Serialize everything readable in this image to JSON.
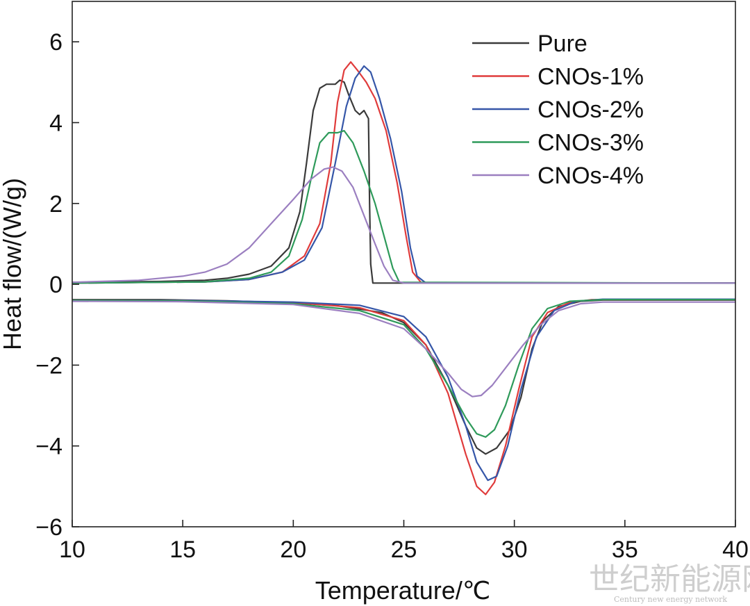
{
  "chart_data": {
    "type": "line",
    "title": "",
    "xlabel": "Temperature/℃",
    "ylabel": "Heat flow/(W/g)",
    "xlim": [
      10,
      40
    ],
    "ylim": [
      -6,
      7
    ],
    "xticks": [
      10,
      15,
      20,
      25,
      30,
      35,
      40
    ],
    "yticks": [
      -6,
      -4,
      -2,
      0,
      2,
      4,
      6
    ],
    "ytick_labels": [
      "−6",
      "−4",
      "−2",
      "0",
      "2",
      "4",
      "6"
    ],
    "grid": false,
    "legend_position": "top-right",
    "series": [
      {
        "name": "Pure",
        "color": "#3a3a3a",
        "segments": [
          [
            [
              10,
              0.05
            ],
            [
              14,
              0.07
            ],
            [
              16,
              0.1
            ],
            [
              17,
              0.15
            ],
            [
              18,
              0.25
            ],
            [
              19,
              0.45
            ],
            [
              19.8,
              0.9
            ],
            [
              20.3,
              1.8
            ],
            [
              20.6,
              3.0
            ],
            [
              20.9,
              4.3
            ],
            [
              21.2,
              4.85
            ],
            [
              21.5,
              4.95
            ],
            [
              21.9,
              4.95
            ],
            [
              22.1,
              5.05
            ],
            [
              22.3,
              5.0
            ],
            [
              22.5,
              4.7
            ],
            [
              22.8,
              4.3
            ],
            [
              23.0,
              4.2
            ],
            [
              23.2,
              4.3
            ],
            [
              23.4,
              4.1
            ],
            [
              23.45,
              2.0
            ],
            [
              23.5,
              0.5
            ],
            [
              23.6,
              0.03
            ],
            [
              40,
              0.03
            ]
          ],
          [
            [
              10,
              -0.38
            ],
            [
              14,
              -0.38
            ],
            [
              17,
              -0.41
            ],
            [
              20,
              -0.46
            ],
            [
              22,
              -0.53
            ],
            [
              24,
              -0.7
            ],
            [
              25,
              -0.95
            ],
            [
              26,
              -1.5
            ],
            [
              27,
              -2.5
            ],
            [
              27.8,
              -3.5
            ],
            [
              28.3,
              -4.05
            ],
            [
              28.7,
              -4.2
            ],
            [
              29.2,
              -4.05
            ],
            [
              29.8,
              -3.6
            ],
            [
              30.3,
              -2.8
            ],
            [
              30.8,
              -1.6
            ],
            [
              31.3,
              -0.9
            ],
            [
              32,
              -0.55
            ],
            [
              33,
              -0.42
            ],
            [
              34,
              -0.39
            ],
            [
              40,
              -0.39
            ]
          ]
        ]
      },
      {
        "name": "CNOs-1%",
        "color": "#e03b3b",
        "segments": [
          [
            [
              10,
              0.03
            ],
            [
              16,
              0.06
            ],
            [
              18,
              0.12
            ],
            [
              19.5,
              0.3
            ],
            [
              20.5,
              0.7
            ],
            [
              21.2,
              1.5
            ],
            [
              21.7,
              3.0
            ],
            [
              22.0,
              4.5
            ],
            [
              22.3,
              5.3
            ],
            [
              22.6,
              5.5
            ],
            [
              22.9,
              5.3
            ],
            [
              23.3,
              5.0
            ],
            [
              23.7,
              4.6
            ],
            [
              24.2,
              3.8
            ],
            [
              24.7,
              2.5
            ],
            [
              25.1,
              1.2
            ],
            [
              25.4,
              0.3
            ],
            [
              25.8,
              0.03
            ],
            [
              40,
              0.03
            ]
          ],
          [
            [
              10,
              -0.4
            ],
            [
              15,
              -0.4
            ],
            [
              20,
              -0.45
            ],
            [
              23,
              -0.58
            ],
            [
              25,
              -0.9
            ],
            [
              26,
              -1.5
            ],
            [
              27,
              -2.7
            ],
            [
              27.8,
              -4.2
            ],
            [
              28.3,
              -5.0
            ],
            [
              28.7,
              -5.2
            ],
            [
              29.1,
              -4.9
            ],
            [
              29.6,
              -4.0
            ],
            [
              30.2,
              -2.6
            ],
            [
              30.8,
              -1.3
            ],
            [
              31.5,
              -0.7
            ],
            [
              32.5,
              -0.45
            ],
            [
              33.5,
              -0.38
            ],
            [
              40,
              -0.38
            ]
          ]
        ]
      },
      {
        "name": "CNOs-2%",
        "color": "#3556a8",
        "segments": [
          [
            [
              10,
              0.03
            ],
            [
              16,
              0.06
            ],
            [
              18,
              0.12
            ],
            [
              19.5,
              0.3
            ],
            [
              20.5,
              0.6
            ],
            [
              21.3,
              1.4
            ],
            [
              21.9,
              3.0
            ],
            [
              22.4,
              4.4
            ],
            [
              22.8,
              5.1
            ],
            [
              23.2,
              5.4
            ],
            [
              23.5,
              5.25
            ],
            [
              23.9,
              4.6
            ],
            [
              24.4,
              3.6
            ],
            [
              24.9,
              2.3
            ],
            [
              25.3,
              0.9
            ],
            [
              25.6,
              0.2
            ],
            [
              26.0,
              0.03
            ],
            [
              40,
              0.03
            ]
          ],
          [
            [
              10,
              -0.4
            ],
            [
              15,
              -0.4
            ],
            [
              20,
              -0.44
            ],
            [
              23,
              -0.52
            ],
            [
              25,
              -0.8
            ],
            [
              26,
              -1.3
            ],
            [
              27,
              -2.3
            ],
            [
              27.8,
              -3.5
            ],
            [
              28.3,
              -4.4
            ],
            [
              28.8,
              -4.85
            ],
            [
              29.2,
              -4.75
            ],
            [
              29.7,
              -4.0
            ],
            [
              30.3,
              -2.6
            ],
            [
              31.0,
              -1.3
            ],
            [
              31.8,
              -0.65
            ],
            [
              32.8,
              -0.42
            ],
            [
              34,
              -0.37
            ],
            [
              40,
              -0.37
            ]
          ]
        ]
      },
      {
        "name": "CNOs-3%",
        "color": "#2e9a5a",
        "segments": [
          [
            [
              10,
              0.03
            ],
            [
              16,
              0.06
            ],
            [
              18,
              0.15
            ],
            [
              19,
              0.3
            ],
            [
              19.8,
              0.7
            ],
            [
              20.4,
              1.6
            ],
            [
              20.8,
              2.6
            ],
            [
              21.2,
              3.5
            ],
            [
              21.6,
              3.75
            ],
            [
              22.0,
              3.75
            ],
            [
              22.3,
              3.8
            ],
            [
              22.7,
              3.5
            ],
            [
              23.2,
              2.8
            ],
            [
              23.7,
              2.0
            ],
            [
              24.1,
              1.2
            ],
            [
              24.5,
              0.4
            ],
            [
              24.8,
              0.05
            ],
            [
              40,
              0.03
            ]
          ],
          [
            [
              10,
              -0.4
            ],
            [
              15,
              -0.41
            ],
            [
              20,
              -0.48
            ],
            [
              23,
              -0.65
            ],
            [
              25,
              -1.0
            ],
            [
              26,
              -1.6
            ],
            [
              27,
              -2.5
            ],
            [
              27.8,
              -3.3
            ],
            [
              28.3,
              -3.7
            ],
            [
              28.7,
              -3.78
            ],
            [
              29.1,
              -3.6
            ],
            [
              29.6,
              -3.0
            ],
            [
              30.2,
              -2.0
            ],
            [
              30.8,
              -1.1
            ],
            [
              31.5,
              -0.6
            ],
            [
              32.5,
              -0.42
            ],
            [
              34,
              -0.38
            ],
            [
              40,
              -0.38
            ]
          ]
        ]
      },
      {
        "name": "CNOs-4%",
        "color": "#9b7fc0",
        "segments": [
          [
            [
              10,
              0.05
            ],
            [
              13,
              0.1
            ],
            [
              15,
              0.2
            ],
            [
              16,
              0.3
            ],
            [
              17,
              0.5
            ],
            [
              18,
              0.9
            ],
            [
              19,
              1.5
            ],
            [
              20,
              2.1
            ],
            [
              20.8,
              2.6
            ],
            [
              21.4,
              2.85
            ],
            [
              21.8,
              2.9
            ],
            [
              22.2,
              2.8
            ],
            [
              22.7,
              2.4
            ],
            [
              23.2,
              1.7
            ],
            [
              23.7,
              1.0
            ],
            [
              24.1,
              0.45
            ],
            [
              24.5,
              0.1
            ],
            [
              25,
              0.03
            ],
            [
              40,
              0.03
            ]
          ],
          [
            [
              10,
              -0.42
            ],
            [
              15,
              -0.43
            ],
            [
              20,
              -0.5
            ],
            [
              23,
              -0.72
            ],
            [
              25,
              -1.1
            ],
            [
              26,
              -1.6
            ],
            [
              27,
              -2.2
            ],
            [
              27.6,
              -2.6
            ],
            [
              28.1,
              -2.78
            ],
            [
              28.5,
              -2.75
            ],
            [
              29.0,
              -2.5
            ],
            [
              29.7,
              -2.0
            ],
            [
              30.4,
              -1.5
            ],
            [
              31.2,
              -1.0
            ],
            [
              32,
              -0.65
            ],
            [
              33,
              -0.48
            ],
            [
              34,
              -0.44
            ],
            [
              40,
              -0.44
            ]
          ]
        ]
      }
    ]
  },
  "watermark": {
    "main": "世纪新能源网",
    "sub": "Century new energy network"
  }
}
